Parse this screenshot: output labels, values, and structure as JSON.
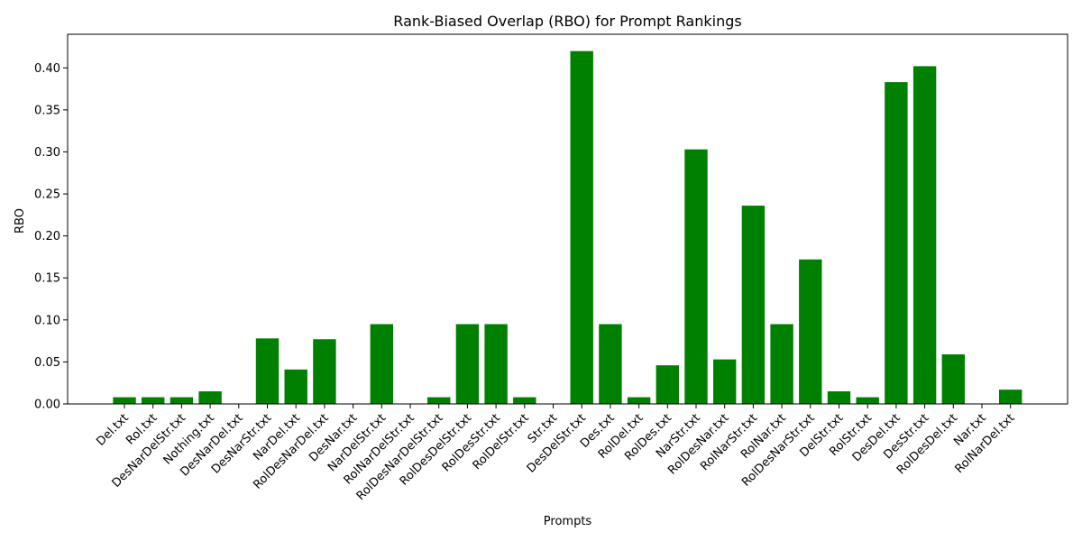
{
  "chart_data": {
    "type": "bar",
    "title": "Rank-Biased Overlap (RBO) for Prompt Rankings",
    "xlabel": "Prompts",
    "ylabel": "RBO",
    "ylim": [
      0,
      0.44
    ],
    "yticks": [
      "0.00",
      "0.05",
      "0.10",
      "0.15",
      "0.20",
      "0.25",
      "0.30",
      "0.35",
      "0.40"
    ],
    "grid": false,
    "bar_color": "#008000",
    "categories": [
      "Del.txt",
      "Rol.txt",
      "DesNarDelStr.txt",
      "Nothing.txt",
      "DesNarDel.txt",
      "DesNarStr.txt",
      "NarDel.txt",
      "RolDesNarDel.txt",
      "DesNar.txt",
      "NarDelStr.txt",
      "RolNarDelStr.txt",
      "RolDesNarDelStr.txt",
      "RolDesDelStr.txt",
      "RolDesStr.txt",
      "RolDelStr.txt",
      "Str.txt",
      "DesDelStr.txt",
      "Des.txt",
      "RolDel.txt",
      "RolDes.txt",
      "NarStr.txt",
      "RolDesNar.txt",
      "RolNarStr.txt",
      "RolNar.txt",
      "RolDesNarStr.txt",
      "DelStr.txt",
      "RolStr.txt",
      "DesDel.txt",
      "DesStr.txt",
      "RolDesDel.txt",
      "Nar.txt",
      "RolNarDel.txt"
    ],
    "values": [
      0.008,
      0.008,
      0.008,
      0.015,
      0.0,
      0.078,
      0.041,
      0.077,
      0.0,
      0.095,
      0.0,
      0.008,
      0.095,
      0.095,
      0.008,
      0.0,
      0.42,
      0.095,
      0.008,
      0.046,
      0.303,
      0.053,
      0.236,
      0.095,
      0.172,
      0.015,
      0.008,
      0.383,
      0.402,
      0.059,
      0.0,
      0.017
    ]
  }
}
